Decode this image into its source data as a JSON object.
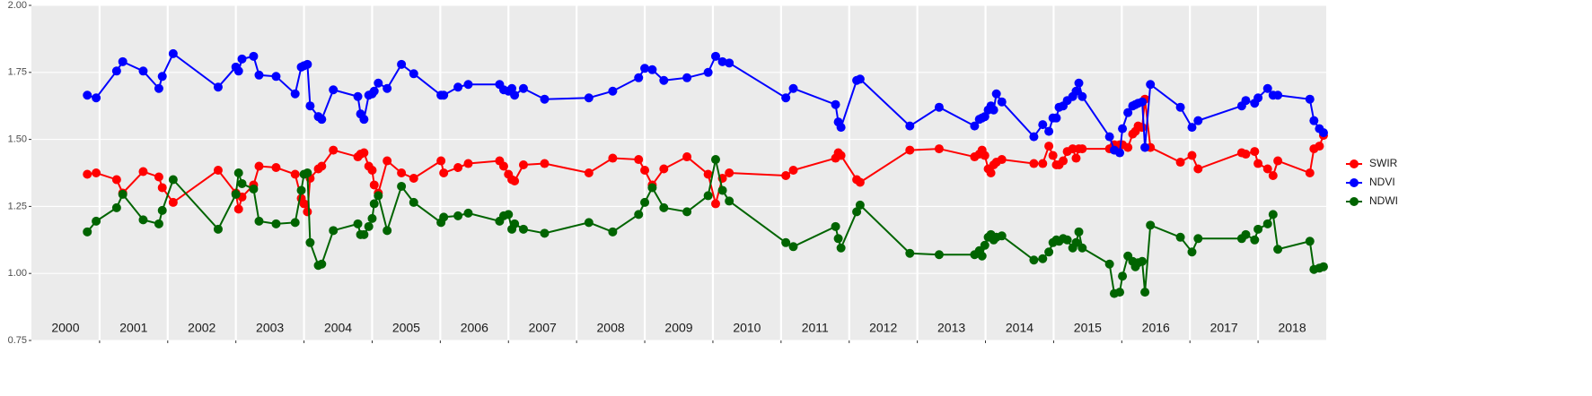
{
  "chart_data": {
    "type": "line",
    "x": [
      2000.82,
      2000.95,
      2001.25,
      2001.34,
      2001.64,
      2001.87,
      2001.92,
      2002.08,
      2002.74,
      2003.0,
      2003.04,
      2003.09,
      2003.26,
      2003.34,
      2003.59,
      2003.87,
      2003.96,
      2004.0,
      2004.05,
      2004.09,
      2004.21,
      2004.26,
      2004.43,
      2004.79,
      2004.83,
      2004.88,
      2004.95,
      2005.0,
      2005.03,
      2005.09,
      2005.22,
      2005.43,
      2005.61,
      2006.01,
      2006.05,
      2006.26,
      2006.41,
      2006.87,
      2006.93,
      2007.0,
      2007.05,
      2007.09,
      2007.22,
      2007.53,
      2008.18,
      2008.53,
      2008.91,
      2009.0,
      2009.11,
      2009.28,
      2009.62,
      2009.93,
      2010.04,
      2010.14,
      2010.24,
      2011.07,
      2011.18,
      2011.8,
      2011.84,
      2011.88,
      2012.11,
      2012.16,
      2012.89,
      2013.32,
      2013.84,
      2013.91,
      2013.95,
      2013.99,
      2014.04,
      2014.08,
      2014.12,
      2014.16,
      2014.24,
      2014.71,
      2014.84,
      2014.93,
      2014.99,
      2015.04,
      2015.08,
      2015.14,
      2015.2,
      2015.28,
      2015.33,
      2015.37,
      2015.42,
      2015.82,
      2015.89,
      2015.97,
      2016.01,
      2016.09,
      2016.16,
      2016.2,
      2016.24,
      2016.3,
      2016.34,
      2016.42,
      2016.86,
      2017.03,
      2017.12,
      2017.76,
      2017.82,
      2017.95,
      2018.0,
      2018.14,
      2018.22,
      2018.29,
      2018.76,
      2018.82,
      2018.9,
      2018.96
    ],
    "series": [
      {
        "name": "SWIR",
        "color": "#ff0000",
        "values": [
          1.37,
          1.375,
          1.35,
          1.3,
          1.38,
          1.36,
          1.32,
          1.265,
          1.385,
          1.3,
          1.24,
          1.285,
          1.33,
          1.4,
          1.395,
          1.37,
          1.28,
          1.26,
          1.23,
          1.355,
          1.39,
          1.4,
          1.46,
          1.435,
          1.445,
          1.45,
          1.4,
          1.385,
          1.33,
          1.3,
          1.42,
          1.375,
          1.355,
          1.42,
          1.375,
          1.395,
          1.41,
          1.42,
          1.4,
          1.37,
          1.35,
          1.345,
          1.405,
          1.41,
          1.375,
          1.43,
          1.425,
          1.385,
          1.33,
          1.39,
          1.435,
          1.37,
          1.26,
          1.355,
          1.375,
          1.365,
          1.385,
          1.43,
          1.45,
          1.44,
          1.35,
          1.34,
          1.46,
          1.465,
          1.435,
          1.445,
          1.46,
          1.44,
          1.39,
          1.375,
          1.405,
          1.415,
          1.425,
          1.41,
          1.41,
          1.475,
          1.44,
          1.405,
          1.405,
          1.42,
          1.455,
          1.465,
          1.43,
          1.465,
          1.465,
          1.465,
          1.48,
          1.48,
          1.48,
          1.47,
          1.52,
          1.53,
          1.55,
          1.545,
          1.65,
          1.47,
          1.415,
          1.44,
          1.39,
          1.45,
          1.445,
          1.455,
          1.41,
          1.39,
          1.365,
          1.42,
          1.375,
          1.465,
          1.475,
          1.515
        ]
      },
      {
        "name": "NDVI",
        "color": "#0000ff",
        "values": [
          1.665,
          1.655,
          1.755,
          1.79,
          1.755,
          1.69,
          1.735,
          1.82,
          1.695,
          1.77,
          1.755,
          1.8,
          1.81,
          1.74,
          1.735,
          1.67,
          1.77,
          1.775,
          1.78,
          1.625,
          1.585,
          1.575,
          1.685,
          1.66,
          1.595,
          1.575,
          1.665,
          1.67,
          1.68,
          1.71,
          1.69,
          1.78,
          1.745,
          1.665,
          1.665,
          1.695,
          1.705,
          1.705,
          1.685,
          1.68,
          1.69,
          1.665,
          1.69,
          1.65,
          1.655,
          1.68,
          1.73,
          1.765,
          1.76,
          1.72,
          1.73,
          1.75,
          1.81,
          1.79,
          1.785,
          1.655,
          1.69,
          1.63,
          1.565,
          1.545,
          1.72,
          1.725,
          1.55,
          1.62,
          1.55,
          1.575,
          1.58,
          1.585,
          1.61,
          1.625,
          1.61,
          1.67,
          1.64,
          1.51,
          1.555,
          1.53,
          1.58,
          1.58,
          1.62,
          1.625,
          1.645,
          1.66,
          1.68,
          1.71,
          1.66,
          1.51,
          1.46,
          1.45,
          1.54,
          1.6,
          1.625,
          1.63,
          1.635,
          1.64,
          1.47,
          1.705,
          1.62,
          1.545,
          1.57,
          1.625,
          1.645,
          1.635,
          1.655,
          1.69,
          1.665,
          1.665,
          1.65,
          1.57,
          1.54,
          1.525
        ]
      },
      {
        "name": "NDWI",
        "color": "#006400",
        "values": [
          1.155,
          1.195,
          1.245,
          1.295,
          1.2,
          1.185,
          1.235,
          1.35,
          1.165,
          1.295,
          1.375,
          1.335,
          1.315,
          1.195,
          1.185,
          1.19,
          1.31,
          1.37,
          1.375,
          1.115,
          1.03,
          1.035,
          1.16,
          1.185,
          1.145,
          1.145,
          1.175,
          1.205,
          1.26,
          1.29,
          1.16,
          1.325,
          1.265,
          1.19,
          1.21,
          1.215,
          1.225,
          1.195,
          1.215,
          1.22,
          1.165,
          1.185,
          1.165,
          1.15,
          1.19,
          1.155,
          1.22,
          1.265,
          1.32,
          1.245,
          1.23,
          1.29,
          1.425,
          1.31,
          1.27,
          1.115,
          1.1,
          1.175,
          1.13,
          1.095,
          1.23,
          1.255,
          1.075,
          1.07,
          1.07,
          1.085,
          1.065,
          1.105,
          1.135,
          1.145,
          1.125,
          1.135,
          1.14,
          1.05,
          1.055,
          1.08,
          1.115,
          1.125,
          1.12,
          1.13,
          1.125,
          1.095,
          1.115,
          1.155,
          1.095,
          1.035,
          0.925,
          0.93,
          0.99,
          1.065,
          1.045,
          1.025,
          1.04,
          1.045,
          0.93,
          1.18,
          1.135,
          1.08,
          1.13,
          1.13,
          1.145,
          1.125,
          1.165,
          1.185,
          1.22,
          1.09,
          1.12,
          1.015,
          1.02,
          1.025
        ]
      }
    ],
    "xlim": [
      2000,
      2019
    ],
    "xticks": [
      2001,
      2002,
      2003,
      2004,
      2005,
      2006,
      2007,
      2008,
      2009,
      2010,
      2011,
      2012,
      2013,
      2014,
      2015,
      2016,
      2017,
      2018
    ],
    "x_labels": [
      {
        "value": 2000.5,
        "label": "2000"
      },
      {
        "value": 2001.5,
        "label": "2001"
      },
      {
        "value": 2002.5,
        "label": "2002"
      },
      {
        "value": 2003.5,
        "label": "2003"
      },
      {
        "value": 2004.5,
        "label": "2004"
      },
      {
        "value": 2005.5,
        "label": "2005"
      },
      {
        "value": 2006.5,
        "label": "2006"
      },
      {
        "value": 2007.5,
        "label": "2007"
      },
      {
        "value": 2008.5,
        "label": "2008"
      },
      {
        "value": 2009.5,
        "label": "2009"
      },
      {
        "value": 2010.5,
        "label": "2010"
      },
      {
        "value": 2011.5,
        "label": "2011"
      },
      {
        "value": 2012.5,
        "label": "2012"
      },
      {
        "value": 2013.5,
        "label": "2013"
      },
      {
        "value": 2014.5,
        "label": "2014"
      },
      {
        "value": 2015.5,
        "label": "2015"
      },
      {
        "value": 2016.5,
        "label": "2016"
      },
      {
        "value": 2017.5,
        "label": "2017"
      },
      {
        "value": 2018.5,
        "label": "2018"
      }
    ],
    "ylim": [
      0.75,
      2.0
    ],
    "yticks": [
      {
        "value": 0.75,
        "label": "0.75"
      },
      {
        "value": 1.0,
        "label": "1.00"
      },
      {
        "value": 1.25,
        "label": "1.25"
      },
      {
        "value": 1.5,
        "label": "1.50"
      },
      {
        "value": 1.75,
        "label": "1.75"
      },
      {
        "value": 2.0,
        "label": "2.00"
      }
    ],
    "grid": true,
    "legend": "right"
  }
}
